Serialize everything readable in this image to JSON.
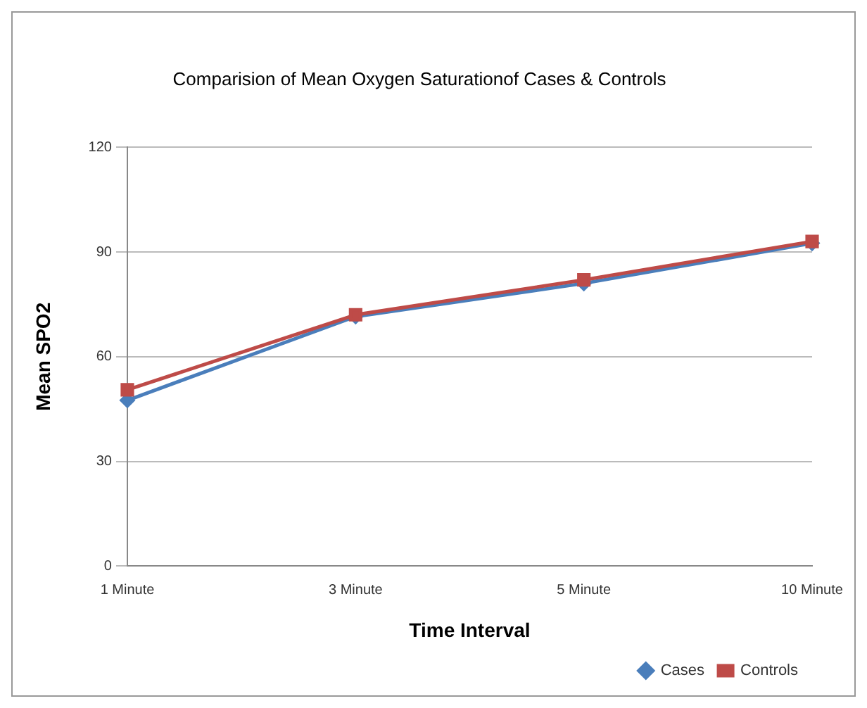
{
  "chart_data": {
    "type": "line",
    "title": "Comparision of Mean Oxygen Saturationof Cases & Controls",
    "xlabel": "Time Interval",
    "ylabel": "Mean SPO2",
    "categories": [
      "1 Minute",
      "3 Minute",
      "5 Minute",
      "10 Minute"
    ],
    "series": [
      {
        "name": "Cases",
        "color": "#4a7ebb",
        "marker": "diamond",
        "values": [
          47.5,
          71.5,
          81,
          92.5
        ]
      },
      {
        "name": "Controls",
        "color": "#be4b48",
        "marker": "square",
        "values": [
          50.5,
          72,
          82,
          93
        ]
      }
    ],
    "ylim": [
      0,
      120
    ],
    "yticks": [
      0,
      30,
      60,
      90,
      120
    ],
    "grid": "y",
    "legend": "bottom right"
  }
}
